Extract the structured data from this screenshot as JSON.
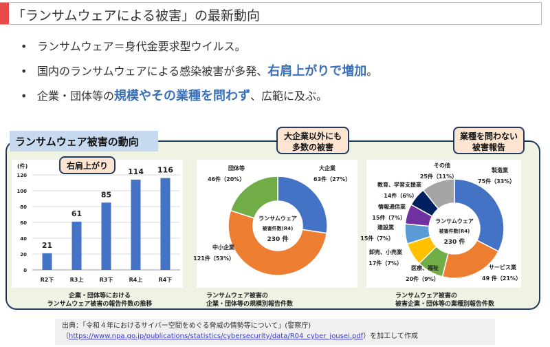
{
  "header": {
    "title": "「ランサムウェアによる被害」の最新動向"
  },
  "bullets": [
    {
      "text": "ランサムウェア＝身代金要求型ウイルス。",
      "emph": "",
      "after": ""
    },
    {
      "text": "国内のランサムウェアによる感染被害が多発、",
      "emph": "右肩上がりで増加",
      "after": "。"
    },
    {
      "text": "企業・団体等の",
      "emph": "規模やその業種を問わず",
      "after": "、広範に及ぶ。"
    }
  ],
  "panel": {
    "title": "ランサムウェア被害の動向",
    "callout_bar": "右肩上がり",
    "callout_pie1": "大企業以外にも\n多数の被害",
    "callout_pie2": "業種を問わない\n被害報告"
  },
  "chart_data": [
    {
      "type": "bar",
      "categories": [
        "R2下",
        "R3上",
        "R3下",
        "R4上",
        "R4下"
      ],
      "values": [
        21,
        61,
        85,
        114,
        116
      ],
      "ylabel": "(件)",
      "ylim": [
        0,
        120
      ],
      "yticks": [
        0,
        20,
        40,
        60,
        80,
        100,
        120
      ],
      "grid": true,
      "color": "#4472c4",
      "caption": "企業・団体等における\nランサムウェア被害の報告件数の推移"
    },
    {
      "type": "pie",
      "center": [
        "ランサムウェア",
        "被害件数(R4)",
        "230 件"
      ],
      "slices": [
        {
          "name": "大企業",
          "value": 63,
          "pct": "63件（27%）",
          "color": "#4472c4"
        },
        {
          "name": "中小企業",
          "value": 121,
          "pct": "121件（53%）",
          "color": "#ed7d31"
        },
        {
          "name": "団体等",
          "value": 46,
          "pct": "46件（20%）",
          "color": "#70ad47"
        }
      ],
      "caption": "ランサムウェア被害の\n企業・団体等の規模別報告件数"
    },
    {
      "type": "pie",
      "center": [
        "ランサムウェア",
        "被害件数(R4)",
        "230 件"
      ],
      "slices": [
        {
          "name": "製造業",
          "value": 75,
          "pct": "75件（33%）",
          "color": "#4472c4"
        },
        {
          "name": "サービス業",
          "value": 49,
          "pct": "49 件（21%）",
          "color": "#ed7d31"
        },
        {
          "name": "医療、福祉",
          "value": 20,
          "pct": "20件（9%）",
          "color": "#70ad47"
        },
        {
          "name": "卸売、小売業",
          "value": 17,
          "pct": "17件（7%）",
          "color": "#ffc000"
        },
        {
          "name": "建設業",
          "value": 15,
          "pct": "15件（7%）",
          "color": "#5b9bd5"
        },
        {
          "name": "情報通信業",
          "value": 15,
          "pct": "15件（7%）",
          "color": "#7030a0"
        },
        {
          "name": "教育、学習支援業",
          "value": 14,
          "pct": "14件（6%）",
          "color": "#002060"
        },
        {
          "name": "その他",
          "value": 25,
          "pct": "25件（11%）",
          "color": "#a5a5a5"
        }
      ],
      "caption": "ランサムウェア被害の\n被害企業・団体等の業種別報告件数"
    }
  ],
  "footer": {
    "line1": "出典：「令和４年におけるサイバー空間をめぐる脅威の情勢等について」(警察庁)",
    "paren_open": "（",
    "url": "https://www.npa.go.jp/publications/statistics/cybersecurity/data/R04_cyber_jousei.pdf",
    "after": "）を加工して作成"
  }
}
